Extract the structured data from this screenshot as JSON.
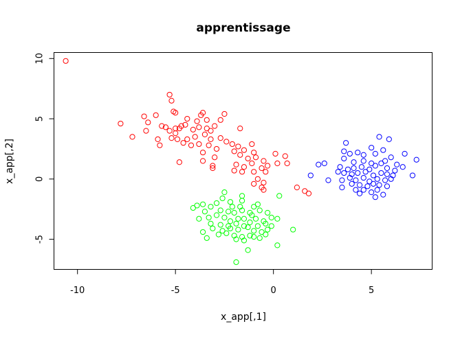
{
  "chart_data": {
    "type": "scatter",
    "title": "apprentissage",
    "xlabel": "x_app[,1]",
    "ylabel": "x_app[,2]",
    "xlim": [
      -11.2,
      8.1
    ],
    "ylim": [
      -7.5,
      10.5
    ],
    "xticks": [
      -10,
      -5,
      0,
      5
    ],
    "yticks": [
      -5,
      0,
      5,
      10
    ],
    "xtick_labels": [
      "-10",
      "-5",
      "0",
      "5"
    ],
    "ytick_labels": [
      "-5",
      "0",
      "5",
      "10"
    ],
    "marker": "open-circle",
    "grid": false,
    "series": [
      {
        "color": "#ff0000",
        "points": [
          [
            -10.6,
            9.8
          ],
          [
            -5.3,
            7.0
          ],
          [
            -5.2,
            6.5
          ],
          [
            -5.1,
            5.6
          ],
          [
            -5.0,
            5.5
          ],
          [
            -3.6,
            5.5
          ],
          [
            -3.7,
            5.3
          ],
          [
            -2.5,
            5.4
          ],
          [
            -6.6,
            5.2
          ],
          [
            -6.0,
            5.3
          ],
          [
            -6.4,
            4.7
          ],
          [
            -7.8,
            4.6
          ],
          [
            -5.7,
            4.4
          ],
          [
            -5.5,
            4.3
          ],
          [
            -5.0,
            4.2
          ],
          [
            -4.7,
            4.4
          ],
          [
            -4.5,
            4.5
          ],
          [
            -4.4,
            5.0
          ],
          [
            -3.9,
            4.8
          ],
          [
            -3.4,
            4.9
          ],
          [
            -3.0,
            4.4
          ],
          [
            -2.7,
            4.9
          ],
          [
            -1.7,
            4.2
          ],
          [
            -6.5,
            4.0
          ],
          [
            -5.3,
            4.0
          ],
          [
            -4.8,
            4.2
          ],
          [
            -4.1,
            4.1
          ],
          [
            -3.8,
            4.3
          ],
          [
            -3.4,
            4.2
          ],
          [
            -3.2,
            4.0
          ],
          [
            -5.0,
            3.8
          ],
          [
            -7.2,
            3.5
          ],
          [
            -5.9,
            3.3
          ],
          [
            -5.2,
            3.4
          ],
          [
            -4.9,
            3.3
          ],
          [
            -4.4,
            3.3
          ],
          [
            -4.0,
            3.5
          ],
          [
            -3.5,
            3.7
          ],
          [
            -3.2,
            3.3
          ],
          [
            -2.7,
            3.4
          ],
          [
            -2.4,
            3.1
          ],
          [
            -5.8,
            2.8
          ],
          [
            -4.6,
            3.0
          ],
          [
            -4.2,
            2.8
          ],
          [
            -3.8,
            2.9
          ],
          [
            -3.3,
            2.8
          ],
          [
            -2.9,
            2.5
          ],
          [
            -2.1,
            2.9
          ],
          [
            -1.8,
            2.7
          ],
          [
            -1.1,
            2.9
          ],
          [
            -3.6,
            2.2
          ],
          [
            -1.5,
            2.4
          ],
          [
            -1.0,
            2.2
          ],
          [
            -3.0,
            1.8
          ],
          [
            -2.0,
            2.3
          ],
          [
            -1.7,
            2.0
          ],
          [
            -1.3,
            1.7
          ],
          [
            -0.9,
            1.8
          ],
          [
            -0.5,
            1.5
          ],
          [
            0.1,
            2.1
          ],
          [
            0.6,
            1.9
          ],
          [
            -4.8,
            1.4
          ],
          [
            -3.6,
            1.5
          ],
          [
            -3.1,
            1.1
          ],
          [
            -1.9,
            1.2
          ],
          [
            -1.5,
            1.0
          ],
          [
            -1.1,
            1.3
          ],
          [
            -0.6,
            0.9
          ],
          [
            -0.3,
            1.1
          ],
          [
            0.2,
            1.3
          ],
          [
            0.7,
            1.3
          ],
          [
            -3.1,
            0.9
          ],
          [
            -2.0,
            0.7
          ],
          [
            -1.6,
            0.6
          ],
          [
            -1.0,
            0.6
          ],
          [
            -0.4,
            0.6
          ],
          [
            -0.8,
            0.0
          ],
          [
            -0.5,
            -0.3
          ],
          [
            -1.0,
            -0.4
          ],
          [
            -0.6,
            -0.7
          ],
          [
            -0.5,
            -0.9
          ],
          [
            1.2,
            -0.7
          ],
          [
            1.6,
            -1.0
          ],
          [
            1.8,
            -1.2
          ]
        ]
      },
      {
        "color": "#0000ff",
        "points": [
          [
            5.4,
            3.5
          ],
          [
            5.9,
            3.3
          ],
          [
            3.7,
            3.0
          ],
          [
            5.0,
            2.6
          ],
          [
            3.6,
            2.3
          ],
          [
            3.9,
            2.1
          ],
          [
            4.3,
            2.2
          ],
          [
            4.6,
            2.0
          ],
          [
            5.2,
            2.1
          ],
          [
            5.6,
            2.4
          ],
          [
            6.7,
            2.1
          ],
          [
            6.0,
            1.8
          ],
          [
            7.3,
            1.6
          ],
          [
            3.6,
            1.7
          ],
          [
            4.1,
            1.4
          ],
          [
            4.6,
            1.5
          ],
          [
            5.0,
            1.3
          ],
          [
            5.5,
            1.3
          ],
          [
            5.7,
            1.5
          ],
          [
            6.3,
            1.2
          ],
          [
            6.6,
            1.0
          ],
          [
            2.6,
            1.3
          ],
          [
            2.3,
            1.2
          ],
          [
            3.4,
            1.0
          ],
          [
            3.8,
            0.8
          ],
          [
            4.1,
            0.9
          ],
          [
            4.5,
            1.0
          ],
          [
            4.9,
            0.8
          ],
          [
            5.2,
            1.1
          ],
          [
            5.8,
            0.9
          ],
          [
            6.2,
            0.7
          ],
          [
            1.9,
            0.3
          ],
          [
            3.3,
            0.6
          ],
          [
            3.6,
            0.5
          ],
          [
            4.0,
            0.4
          ],
          [
            4.3,
            0.5
          ],
          [
            4.7,
            0.6
          ],
          [
            5.1,
            0.3
          ],
          [
            5.5,
            0.5
          ],
          [
            5.8,
            0.4
          ],
          [
            6.1,
            0.3
          ],
          [
            7.1,
            0.3
          ],
          [
            2.8,
            -0.1
          ],
          [
            3.5,
            -0.1
          ],
          [
            3.9,
            0.1
          ],
          [
            4.2,
            -0.1
          ],
          [
            4.6,
            0.1
          ],
          [
            4.9,
            -0.2
          ],
          [
            5.3,
            0.0
          ],
          [
            5.7,
            -0.1
          ],
          [
            6.0,
            0.0
          ],
          [
            4.0,
            -0.4
          ],
          [
            4.4,
            -0.5
          ],
          [
            4.8,
            -0.6
          ],
          [
            5.1,
            -0.4
          ],
          [
            5.4,
            -0.5
          ],
          [
            5.8,
            -0.6
          ],
          [
            3.5,
            -0.7
          ],
          [
            4.2,
            -0.9
          ],
          [
            4.6,
            -0.9
          ],
          [
            5.0,
            -1.1
          ],
          [
            5.3,
            -0.9
          ],
          [
            5.2,
            -1.5
          ],
          [
            5.6,
            -1.3
          ],
          [
            4.4,
            -1.2
          ]
        ]
      },
      {
        "color": "#00ff00",
        "points": [
          [
            -2.5,
            -1.1
          ],
          [
            -1.6,
            -1.4
          ],
          [
            -2.6,
            -1.6
          ],
          [
            -2.2,
            -1.9
          ],
          [
            -1.6,
            -1.8
          ],
          [
            -3.9,
            -2.2
          ],
          [
            -3.6,
            -2.1
          ],
          [
            -3.2,
            -2.3
          ],
          [
            -2.9,
            -2.0
          ],
          [
            -2.1,
            -2.3
          ],
          [
            -1.7,
            -2.3
          ],
          [
            -1.0,
            -2.3
          ],
          [
            -0.8,
            -2.1
          ],
          [
            0.3,
            -1.4
          ],
          [
            -4.1,
            -2.4
          ],
          [
            -3.5,
            -2.7
          ],
          [
            -2.7,
            -2.6
          ],
          [
            -2.3,
            -2.7
          ],
          [
            -2.0,
            -2.8
          ],
          [
            -1.6,
            -2.6
          ],
          [
            -1.2,
            -2.8
          ],
          [
            -0.7,
            -2.6
          ],
          [
            -0.3,
            -2.8
          ],
          [
            -3.8,
            -3.3
          ],
          [
            -3.3,
            -3.2
          ],
          [
            -2.9,
            -3.0
          ],
          [
            -2.5,
            -3.2
          ],
          [
            -2.2,
            -3.5
          ],
          [
            -1.8,
            -3.3
          ],
          [
            -1.5,
            -3.3
          ],
          [
            -1.1,
            -3.0
          ],
          [
            -0.9,
            -3.3
          ],
          [
            -0.5,
            -3.5
          ],
          [
            -0.1,
            -3.2
          ],
          [
            0.2,
            -3.3
          ],
          [
            -3.2,
            -3.7
          ],
          [
            -2.7,
            -3.8
          ],
          [
            -2.3,
            -3.9
          ],
          [
            -1.9,
            -3.7
          ],
          [
            -1.5,
            -3.9
          ],
          [
            -1.2,
            -3.6
          ],
          [
            -0.8,
            -3.9
          ],
          [
            -0.4,
            -3.7
          ],
          [
            -0.1,
            -3.9
          ],
          [
            -3.1,
            -4.1
          ],
          [
            -2.6,
            -4.3
          ],
          [
            -2.2,
            -4.1
          ],
          [
            -1.8,
            -4.2
          ],
          [
            -1.3,
            -4.0
          ],
          [
            -1.0,
            -4.3
          ],
          [
            -0.6,
            -4.4
          ],
          [
            -0.3,
            -4.2
          ],
          [
            1.0,
            -4.2
          ],
          [
            -3.6,
            -4.4
          ],
          [
            -2.8,
            -4.6
          ],
          [
            -2.4,
            -4.5
          ],
          [
            -2.0,
            -4.7
          ],
          [
            -1.6,
            -4.8
          ],
          [
            -1.2,
            -4.7
          ],
          [
            -0.7,
            -4.9
          ],
          [
            -0.4,
            -4.6
          ],
          [
            -3.4,
            -4.9
          ],
          [
            -1.9,
            -5.0
          ],
          [
            -1.5,
            -5.1
          ],
          [
            -1.0,
            -4.8
          ],
          [
            0.2,
            -5.5
          ],
          [
            -1.3,
            -5.9
          ],
          [
            -1.9,
            -6.9
          ]
        ]
      }
    ]
  }
}
